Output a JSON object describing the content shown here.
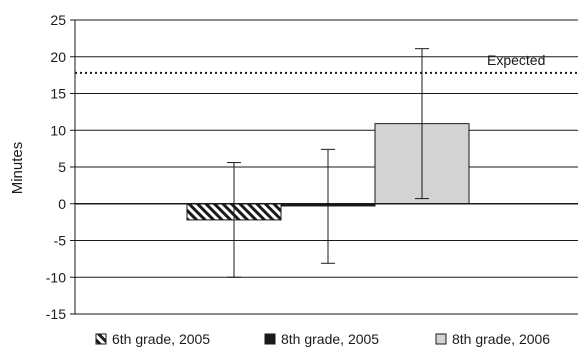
{
  "chart_data": {
    "type": "bar",
    "title": "",
    "xlabel": "",
    "ylabel": "Minutes",
    "ylim": [
      -15,
      25
    ],
    "yticks": [
      "25",
      "20",
      "15",
      "10",
      "5",
      "0",
      "-5",
      "-10",
      "-15"
    ],
    "grid": true,
    "legend_position": "bottom",
    "series": [
      {
        "name": "6th grade, 2005",
        "value": -2.2,
        "error_low": -10,
        "error_high": 5.6,
        "fill": "hatched",
        "color": "#1a1a1a"
      },
      {
        "name": "8th grade, 2005",
        "value": -0.3,
        "error_low": -8.1,
        "error_high": 7.4,
        "fill": "solid",
        "color": "#1a1a1a"
      },
      {
        "name": "8th grade, 2006",
        "value": 10.9,
        "error_low": 0.7,
        "error_high": 21.1,
        "fill": "solid",
        "color": "#d3d3d3"
      }
    ],
    "reference_line": {
      "label": "Expected",
      "value": 17.8,
      "style": "dotted"
    }
  }
}
